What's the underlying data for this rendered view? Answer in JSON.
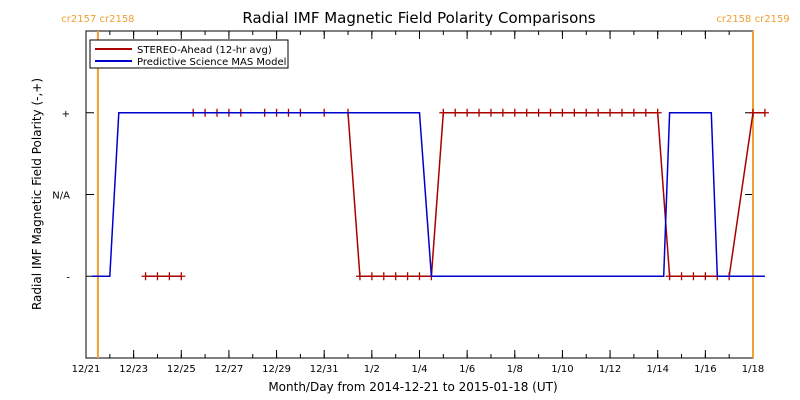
{
  "chart_data": {
    "type": "line",
    "title": "Radial IMF Magnetic Field Polarity Comparisons",
    "xlabel": "Month/Day from 2014-12-21 to 2015-01-18 (UT)",
    "ylabel": "Radial IMF Magnetic Field Polarity (-,+)",
    "xlim": [
      "2014-12-21",
      "2015-01-18"
    ],
    "x_tick_labels": [
      {
        "date": "2014-12-21",
        "label": "12/21"
      },
      {
        "date": "2014-12-23",
        "label": "12/23"
      },
      {
        "date": "2014-12-25",
        "label": "12/25"
      },
      {
        "date": "2014-12-27",
        "label": "12/27"
      },
      {
        "date": "2014-12-29",
        "label": "12/29"
      },
      {
        "date": "2014-12-31",
        "label": "12/31"
      },
      {
        "date": "2015-01-02",
        "label": "1/2"
      },
      {
        "date": "2015-01-04",
        "label": "1/4"
      },
      {
        "date": "2015-01-06",
        "label": "1/6"
      },
      {
        "date": "2015-01-08",
        "label": "1/8"
      },
      {
        "date": "2015-01-10",
        "label": "1/10"
      },
      {
        "date": "2015-01-12",
        "label": "1/12"
      },
      {
        "date": "2015-01-14",
        "label": "1/14"
      },
      {
        "date": "2015-01-16",
        "label": "1/16"
      },
      {
        "date": "2015-01-18",
        "label": "1/18"
      }
    ],
    "y_categories": [
      {
        "value": -1,
        "label": "-"
      },
      {
        "value": 0,
        "label": "N/A"
      },
      {
        "value": 1,
        "label": "+"
      }
    ],
    "ylim": [
      -2,
      2
    ],
    "legend": {
      "position": "top-left"
    },
    "grid": false,
    "carrington_markers": [
      {
        "date": "2014-12-21 12:00",
        "labels": [
          "cr2157",
          "cr2158"
        ],
        "color": "#f0a030"
      },
      {
        "date": "2015-01-18 00:00",
        "labels": [
          "cr2158",
          "cr2159"
        ],
        "color": "#f0a030"
      }
    ],
    "series": [
      {
        "name": "STEREO-Ahead (12-hr avg)",
        "color": "#aa0000",
        "style": "line-with-plus-markers",
        "segments": [
          [
            [
              "2014-12-23 12:00",
              -1
            ],
            [
              "2014-12-24 00:00",
              -1
            ],
            [
              "2014-12-24 12:00",
              -1
            ],
            [
              "2014-12-25 00:00",
              -1
            ]
          ],
          [
            [
              "2014-12-25 12:00",
              1
            ],
            [
              "2014-12-26 00:00",
              1
            ],
            [
              "2014-12-26 12:00",
              1
            ],
            [
              "2014-12-27 00:00",
              1
            ],
            [
              "2014-12-27 12:00",
              1
            ],
            [
              "2014-12-28 12:00",
              1
            ],
            [
              "2014-12-29 00:00",
              1
            ],
            [
              "2014-12-29 12:00",
              1
            ],
            [
              "2014-12-30 00:00",
              1
            ],
            [
              "2014-12-31 00:00",
              1
            ],
            [
              "2015-01-01 00:00",
              1
            ],
            [
              "2015-01-01 12:00",
              -1
            ],
            [
              "2015-01-02 00:00",
              -1
            ],
            [
              "2015-01-02 12:00",
              -1
            ],
            [
              "2015-01-03 00:00",
              -1
            ],
            [
              "2015-01-03 12:00",
              -1
            ],
            [
              "2015-01-04 00:00",
              -1
            ],
            [
              "2015-01-04 12:00",
              -1
            ],
            [
              "2015-01-05 00:00",
              1
            ],
            [
              "2015-01-05 12:00",
              1
            ],
            [
              "2015-01-06 00:00",
              1
            ],
            [
              "2015-01-06 12:00",
              1
            ],
            [
              "2015-01-07 00:00",
              1
            ],
            [
              "2015-01-07 12:00",
              1
            ],
            [
              "2015-01-08 00:00",
              1
            ],
            [
              "2015-01-08 12:00",
              1
            ],
            [
              "2015-01-09 00:00",
              1
            ],
            [
              "2015-01-09 12:00",
              1
            ],
            [
              "2015-01-10 00:00",
              1
            ],
            [
              "2015-01-10 12:00",
              1
            ],
            [
              "2015-01-11 00:00",
              1
            ],
            [
              "2015-01-11 12:00",
              1
            ],
            [
              "2015-01-12 00:00",
              1
            ],
            [
              "2015-01-12 12:00",
              1
            ],
            [
              "2015-01-13 00:00",
              1
            ],
            [
              "2015-01-13 12:00",
              1
            ],
            [
              "2015-01-14 00:00",
              1
            ],
            [
              "2015-01-14 12:00",
              -1
            ],
            [
              "2015-01-15 00:00",
              -1
            ],
            [
              "2015-01-15 12:00",
              -1
            ],
            [
              "2015-01-16 00:00",
              -1
            ],
            [
              "2015-01-16 12:00",
              -1
            ],
            [
              "2015-01-17 00:00",
              -1
            ],
            [
              "2015-01-18 00:00",
              1
            ],
            [
              "2015-01-18 12:00",
              1
            ]
          ]
        ]
      },
      {
        "name": "Predictive Science MAS Model",
        "color": "#0000cc",
        "style": "line",
        "segments": [
          [
            [
              "2014-12-21 06:00",
              -1
            ],
            [
              "2014-12-22 00:00",
              -1
            ],
            [
              "2014-12-22 09:00",
              1
            ],
            [
              "2015-01-01 00:00",
              1
            ],
            [
              "2015-01-04 00:00",
              1
            ],
            [
              "2015-01-04 12:00",
              -1
            ],
            [
              "2015-01-14 06:00",
              -1
            ],
            [
              "2015-01-14 12:00",
              1
            ],
            [
              "2015-01-16 06:00",
              1
            ],
            [
              "2015-01-16 12:00",
              -1
            ],
            [
              "2015-01-18 12:00",
              -1
            ]
          ]
        ]
      }
    ]
  }
}
